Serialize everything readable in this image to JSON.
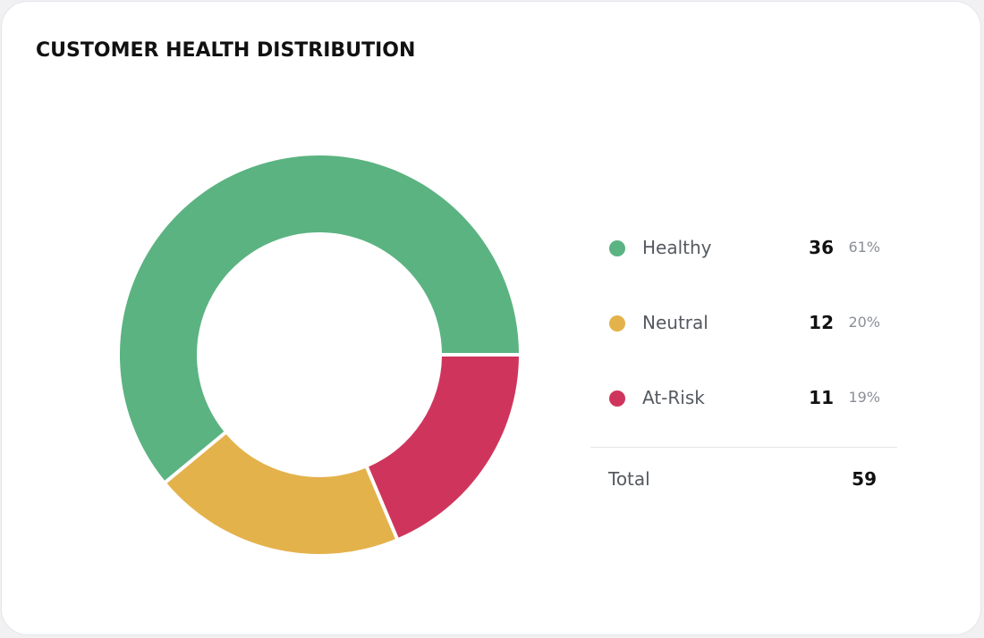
{
  "chart_data": {
    "type": "pie",
    "title": "CUSTOMER HEALTH DISTRIBUTION",
    "categories": [
      "Healthy",
      "Neutral",
      "At-Risk"
    ],
    "values": [
      36,
      12,
      11
    ],
    "percent_labels": [
      "61%",
      "20%",
      "19%"
    ],
    "colors": [
      "#5bb381",
      "#e4b24b",
      "#cf355c"
    ],
    "legend_placement": "right",
    "total_label": "Total",
    "total_value": "59"
  },
  "legend": [
    {
      "label": "Healthy",
      "count": "36",
      "pct": "61%"
    },
    {
      "label": "Neutral",
      "count": "12",
      "pct": "20%"
    },
    {
      "label": "At-Risk",
      "count": "11",
      "pct": "19%"
    }
  ]
}
